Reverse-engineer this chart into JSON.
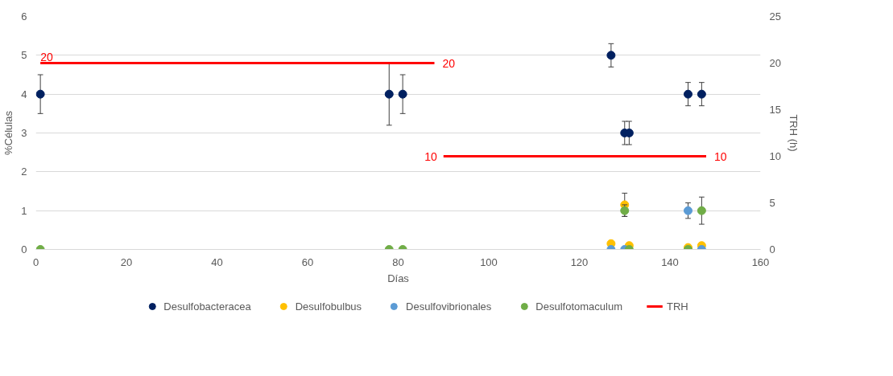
{
  "chart_data": {
    "type": "scatter",
    "xlabel": "Días",
    "ylabel": "%Células",
    "y2label": "TRH (h)",
    "xlim": [
      0,
      160
    ],
    "xticks": [
      0,
      20,
      40,
      60,
      80,
      100,
      120,
      140,
      160
    ],
    "ylim": [
      0,
      6
    ],
    "yticks": [
      0,
      1,
      2,
      3,
      4,
      5,
      6
    ],
    "y2lim": [
      0,
      25
    ],
    "y2ticks": [
      0,
      5,
      10,
      15,
      20,
      25
    ],
    "grid": "y",
    "legend": "bottom",
    "marker": "circle",
    "series": [
      {
        "name": "Desulfobacteracea",
        "color": "#002060",
        "x": [
          1,
          78,
          81,
          127,
          130,
          131,
          144,
          147
        ],
        "values": [
          4,
          4,
          4,
          5,
          3,
          3,
          4,
          4
        ],
        "errors": [
          0.5,
          0.8,
          0.5,
          0.3,
          0.3,
          0.3,
          0.3,
          0.3
        ]
      },
      {
        "name": "Desulfobulbus",
        "color": "#ffc000",
        "x": [
          127,
          130,
          131,
          144,
          147
        ],
        "values": [
          0.15,
          1.15,
          0.1,
          0.05,
          0.1
        ],
        "errors": [
          null,
          0.3,
          null,
          null,
          null
        ]
      },
      {
        "name": "Desulfovibrionales",
        "color": "#5b9bd5",
        "x": [
          127,
          130,
          144,
          147
        ],
        "values": [
          0,
          0,
          1,
          0
        ],
        "errors": [
          null,
          null,
          0.2,
          null
        ]
      },
      {
        "name": "Desulfotomaculum",
        "color": "#70ad47",
        "x": [
          1,
          78,
          81,
          130,
          131,
          144,
          147
        ],
        "values": [
          0,
          0,
          0,
          1,
          0,
          0,
          1
        ],
        "errors": [
          null,
          null,
          null,
          0.15,
          null,
          null,
          0.35
        ]
      },
      {
        "name": "TRH",
        "type": "line",
        "marker": "none",
        "axis": "y2",
        "color": "#ff0000",
        "x": [
          1,
          88,
          89,
          90,
          148
        ],
        "values": [
          20,
          20,
          null,
          10,
          10
        ],
        "value_labels": [
          "20",
          "20",
          null,
          "10",
          "10"
        ]
      }
    ]
  }
}
